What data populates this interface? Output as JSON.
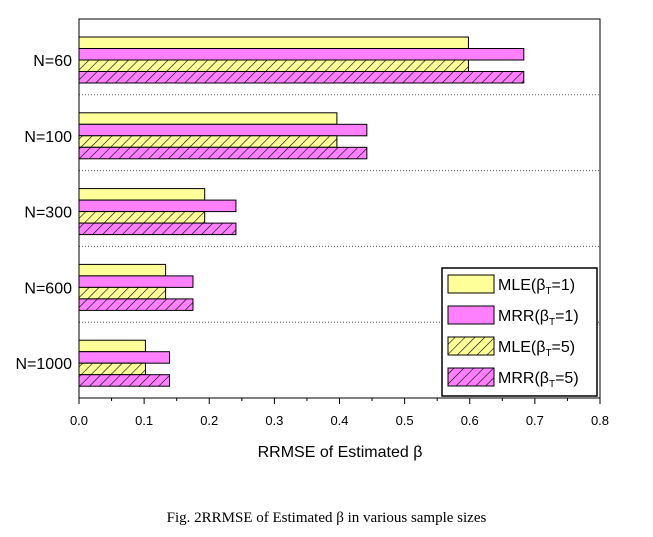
{
  "chart_data": {
    "type": "bar",
    "orientation": "horizontal",
    "categories": [
      "N=60",
      "N=100",
      "N=300",
      "N=600",
      "N=1000"
    ],
    "series": [
      {
        "name": "MLE",
        "legend_sub": "T",
        "legend_suffix": "=1)",
        "color": "#ffff99",
        "hatch": false,
        "values": [
          0.598,
          0.396,
          0.193,
          0.133,
          0.102
        ]
      },
      {
        "name": "MRR",
        "legend_sub": "T",
        "legend_suffix": "=1)",
        "color": "#ff80ff",
        "hatch": false,
        "values": [
          0.683,
          0.442,
          0.241,
          0.175,
          0.139
        ]
      },
      {
        "name": "MLE",
        "legend_sub": "T",
        "legend_suffix": "=5)",
        "color": "#ffff99",
        "hatch": true,
        "values": [
          0.598,
          0.396,
          0.193,
          0.133,
          0.102
        ]
      },
      {
        "name": "MRR",
        "legend_sub": "T",
        "legend_suffix": "=5)",
        "color": "#ff80ff",
        "hatch": true,
        "values": [
          0.683,
          0.442,
          0.241,
          0.175,
          0.139
        ]
      }
    ],
    "legend_prefix": "(β",
    "xlim": [
      0.0,
      0.8
    ],
    "xticks": [
      "0.0",
      "0.1",
      "0.2",
      "0.3",
      "0.4",
      "0.5",
      "0.6",
      "0.7",
      "0.8"
    ],
    "xlabel": "RRMSE of Estimated β",
    "ylabel": "",
    "legend_position": "bottom-right",
    "grid": "dotted separators between groups"
  },
  "caption": "Fig. 2RRMSE of Estimated β in various sample sizes"
}
